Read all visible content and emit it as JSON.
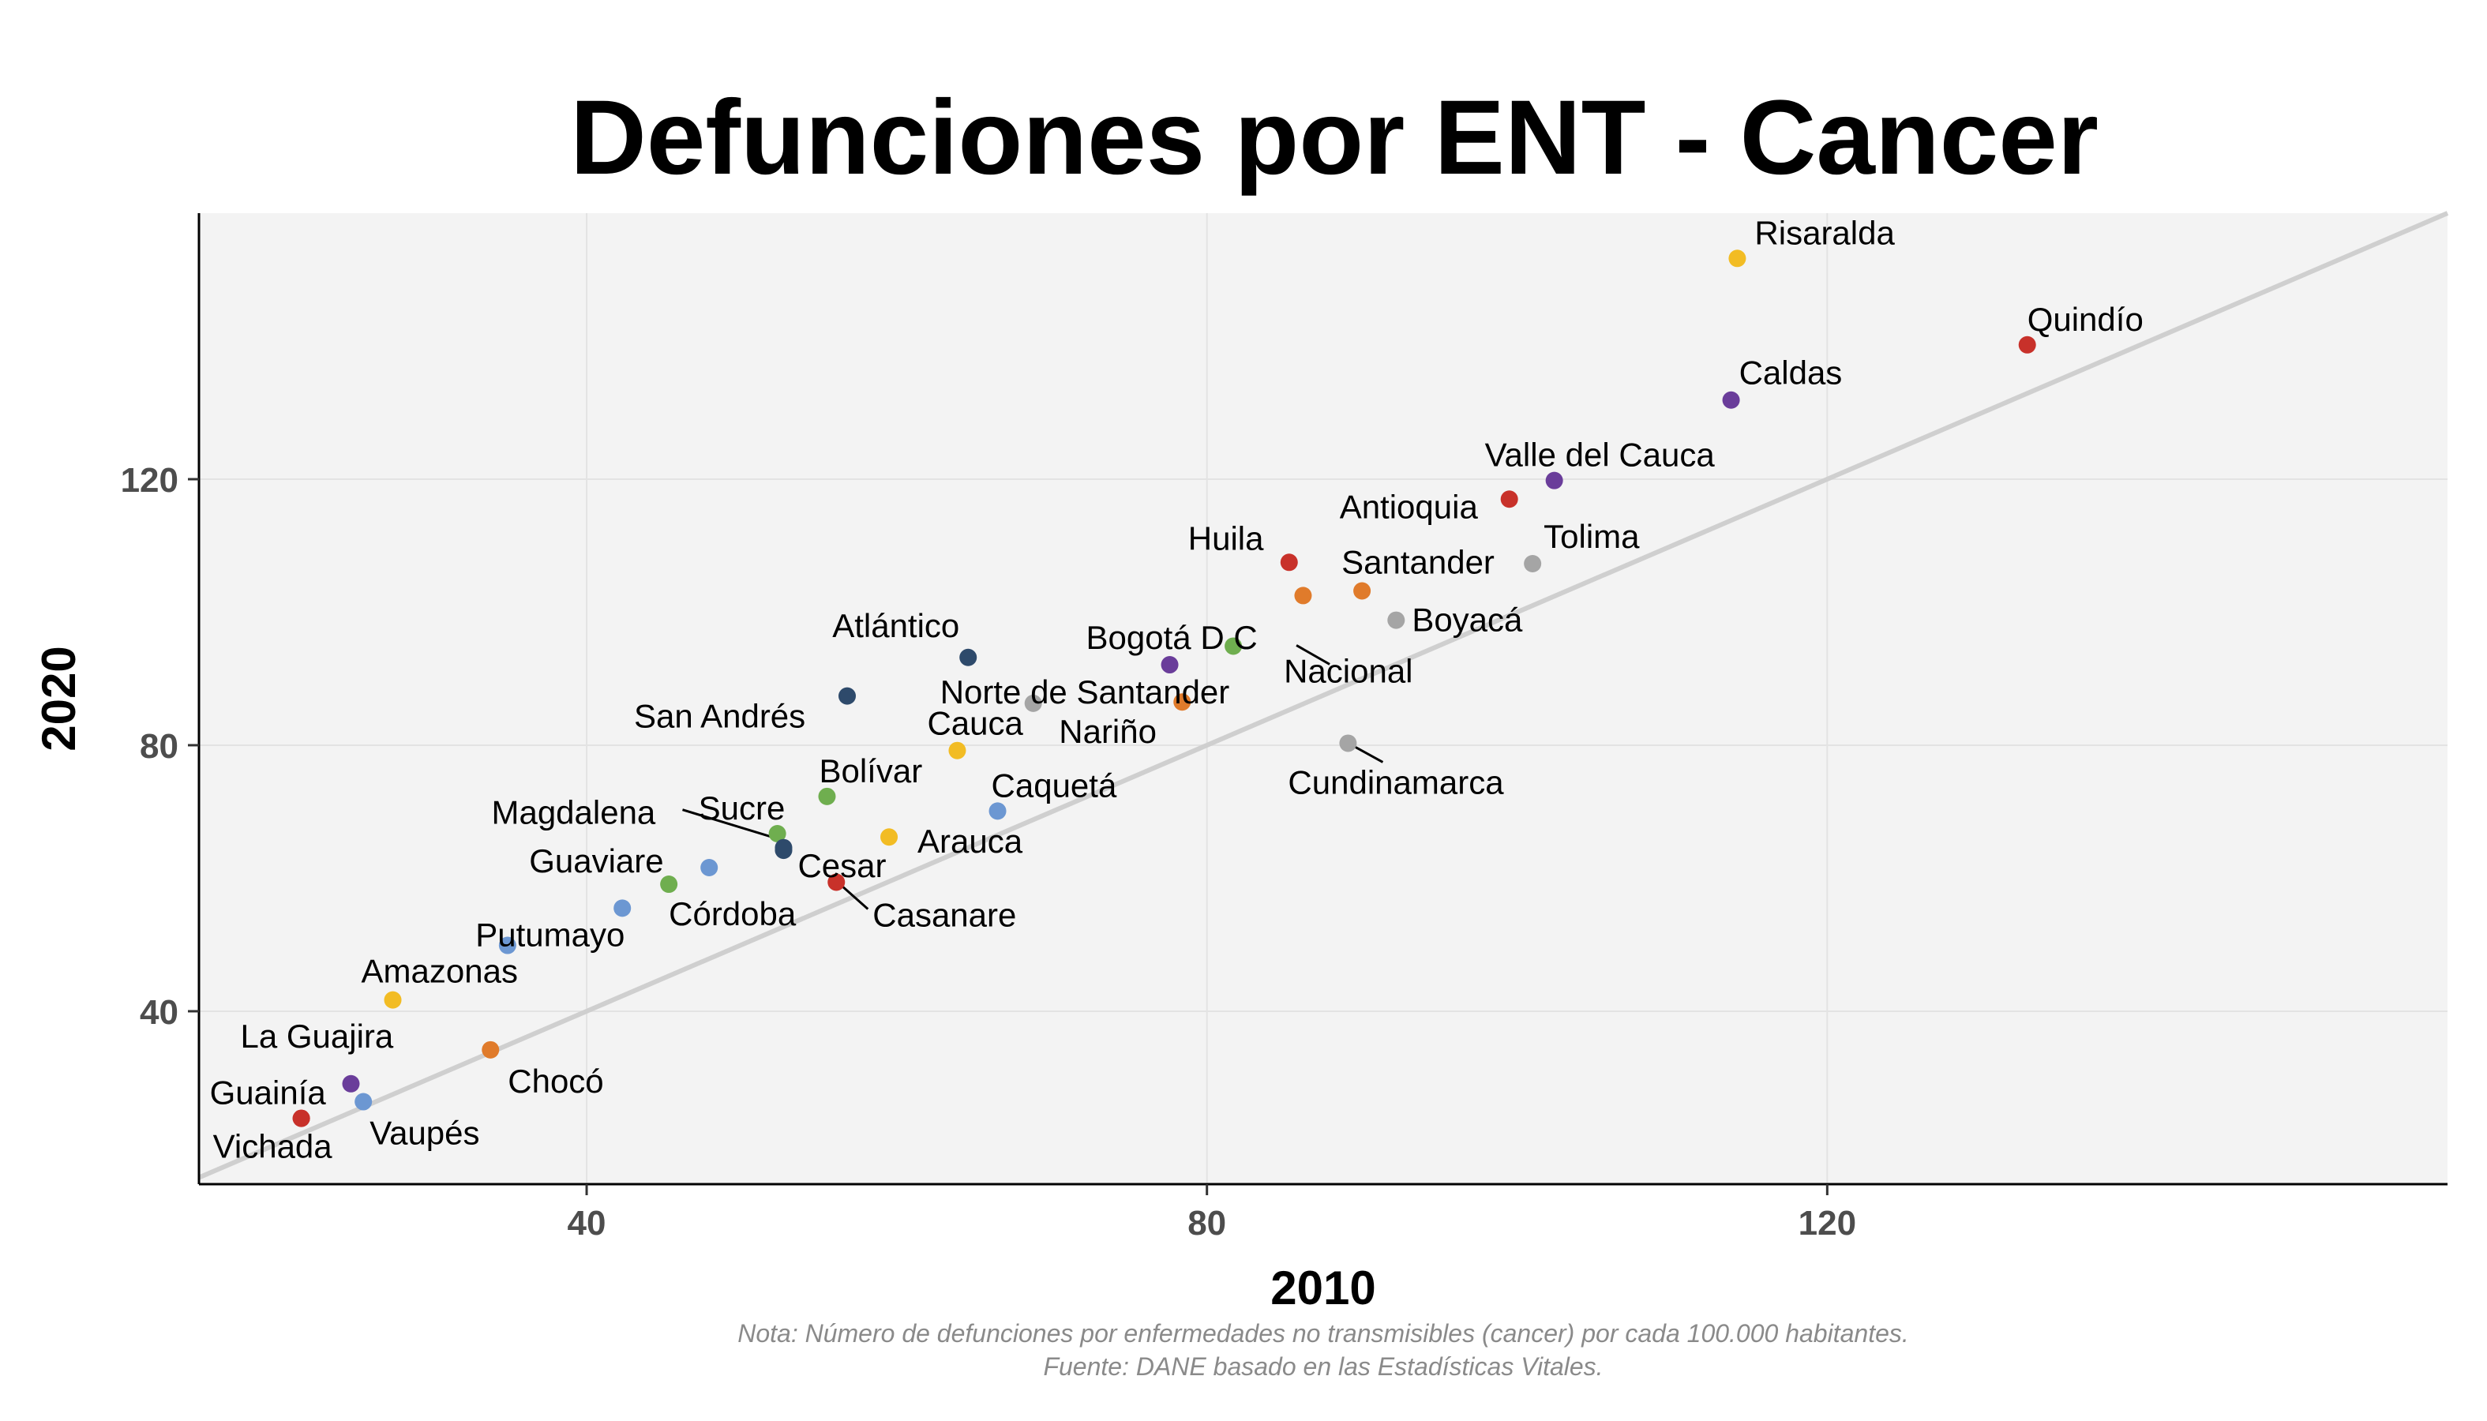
{
  "chart_data": {
    "type": "scatter",
    "title": "Defunciones por ENT - Cancer",
    "xlabel": "2010",
    "ylabel": "2020",
    "xlim": [
      15,
      160
    ],
    "ylim": [
      14,
      160
    ],
    "x_ticks": [
      40,
      80,
      120
    ],
    "y_ticks": [
      40,
      80,
      120
    ],
    "grid": true,
    "reference_line": "y = x",
    "points": [
      {
        "label": "Risaralda",
        "x": 114.2,
        "y": 153.2,
        "color": "#F2BC24"
      },
      {
        "label": "Quindío",
        "x": 132.9,
        "y": 140.2,
        "color": "#C8312A"
      },
      {
        "label": "Caldas",
        "x": 113.8,
        "y": 131.9,
        "color": "#6A3D9A"
      },
      {
        "label": "Valle del Cauca",
        "x": 102.4,
        "y": 119.8,
        "color": "#6A3D9A"
      },
      {
        "label": "Antioquia",
        "x": 99.5,
        "y": 117.0,
        "color": "#C8312A"
      },
      {
        "label": "Tolima",
        "x": 101.0,
        "y": 107.3,
        "color": "#A5A5A5"
      },
      {
        "label": "Huila",
        "x": 85.3,
        "y": 107.5,
        "color": "#C8312A"
      },
      {
        "label": "Santander",
        "x": 90.0,
        "y": 103.2,
        "color": "#E07B2B"
      },
      {
        "label": "",
        "x": 86.2,
        "y": 102.5,
        "color": "#E07B2B"
      },
      {
        "label": "Boyacá",
        "x": 92.2,
        "y": 98.8,
        "color": "#A5A5A5"
      },
      {
        "label": "Bogotá D C",
        "x": 77.6,
        "y": 92.1,
        "color": "#6A3D9A"
      },
      {
        "label": "Nacional",
        "x": 81.7,
        "y": 94.9,
        "color": "#6FAE4F"
      },
      {
        "label": "Atlántico",
        "x": 64.6,
        "y": 93.2,
        "color": "#2E4A6B"
      },
      {
        "label": "San Andrés",
        "x": 56.8,
        "y": 87.4,
        "color": "#2E4A6B"
      },
      {
        "label": "Norte de Santander",
        "x": 68.8,
        "y": 86.3,
        "color": "#A5A5A5"
      },
      {
        "label": "Nariño",
        "x": 78.4,
        "y": 86.5,
        "color": "#E07B2B"
      },
      {
        "label": "Cundinamarca",
        "x": 89.1,
        "y": 80.3,
        "color": "#A5A5A5"
      },
      {
        "label": "Cauca",
        "x": 63.9,
        "y": 79.2,
        "color": "#F2BC24"
      },
      {
        "label": "Bolívar",
        "x": 55.5,
        "y": 72.3,
        "color": "#6FAE4F"
      },
      {
        "label": "Caquetá",
        "x": 66.5,
        "y": 70.1,
        "color": "#6C97D2"
      },
      {
        "label": "Sucre",
        "x": 52.3,
        "y": 66.7,
        "color": "#6FAE4F"
      },
      {
        "label": "Magdalena",
        "x": 52.7,
        "y": 64.6,
        "color": "#2E4A6B"
      },
      {
        "label": "Arauca",
        "x": 59.5,
        "y": 66.2,
        "color": "#F2BC24"
      },
      {
        "label": "Cesar",
        "x": 52.7,
        "y": 64.2,
        "color": "#2E4A6B"
      },
      {
        "label": "Guaviare",
        "x": 47.9,
        "y": 61.6,
        "color": "#6C97D2"
      },
      {
        "label": "Casanare",
        "x": 56.1,
        "y": 59.4,
        "color": "#C8312A"
      },
      {
        "label": "Córdoba",
        "x": 45.3,
        "y": 59.1,
        "color": "#6FAE4F"
      },
      {
        "label": "Putumayo",
        "x": 42.3,
        "y": 55.5,
        "color": "#6C97D2"
      },
      {
        "label": "",
        "x": 34.9,
        "y": 49.9,
        "color": "#6C97D2"
      },
      {
        "label": "Amazonas",
        "x": 27.5,
        "y": 41.7,
        "color": "#F2BC24"
      },
      {
        "label": "Chocó",
        "x": 33.8,
        "y": 34.2,
        "color": "#E07B2B"
      },
      {
        "label": "La Guajira",
        "x": 24.8,
        "y": 29.1,
        "color": "#6A3D9A"
      },
      {
        "label": "Vaupés",
        "x": 25.6,
        "y": 26.4,
        "color": "#6C97D2"
      },
      {
        "label": "Guainía",
        "x": 21.6,
        "y": 23.9,
        "color": "#C8312A"
      },
      {
        "label": "Vichada",
        "x": 21.6,
        "y": 23.9,
        "color": "#C8312A"
      }
    ]
  },
  "notes": {
    "line1": "Nota: Número de defunciones por enfermedades no transmisibles (cancer) por cada 100.000 habitantes.",
    "line2": "Fuente: DANE basado en las Estadísticas Vitales."
  }
}
